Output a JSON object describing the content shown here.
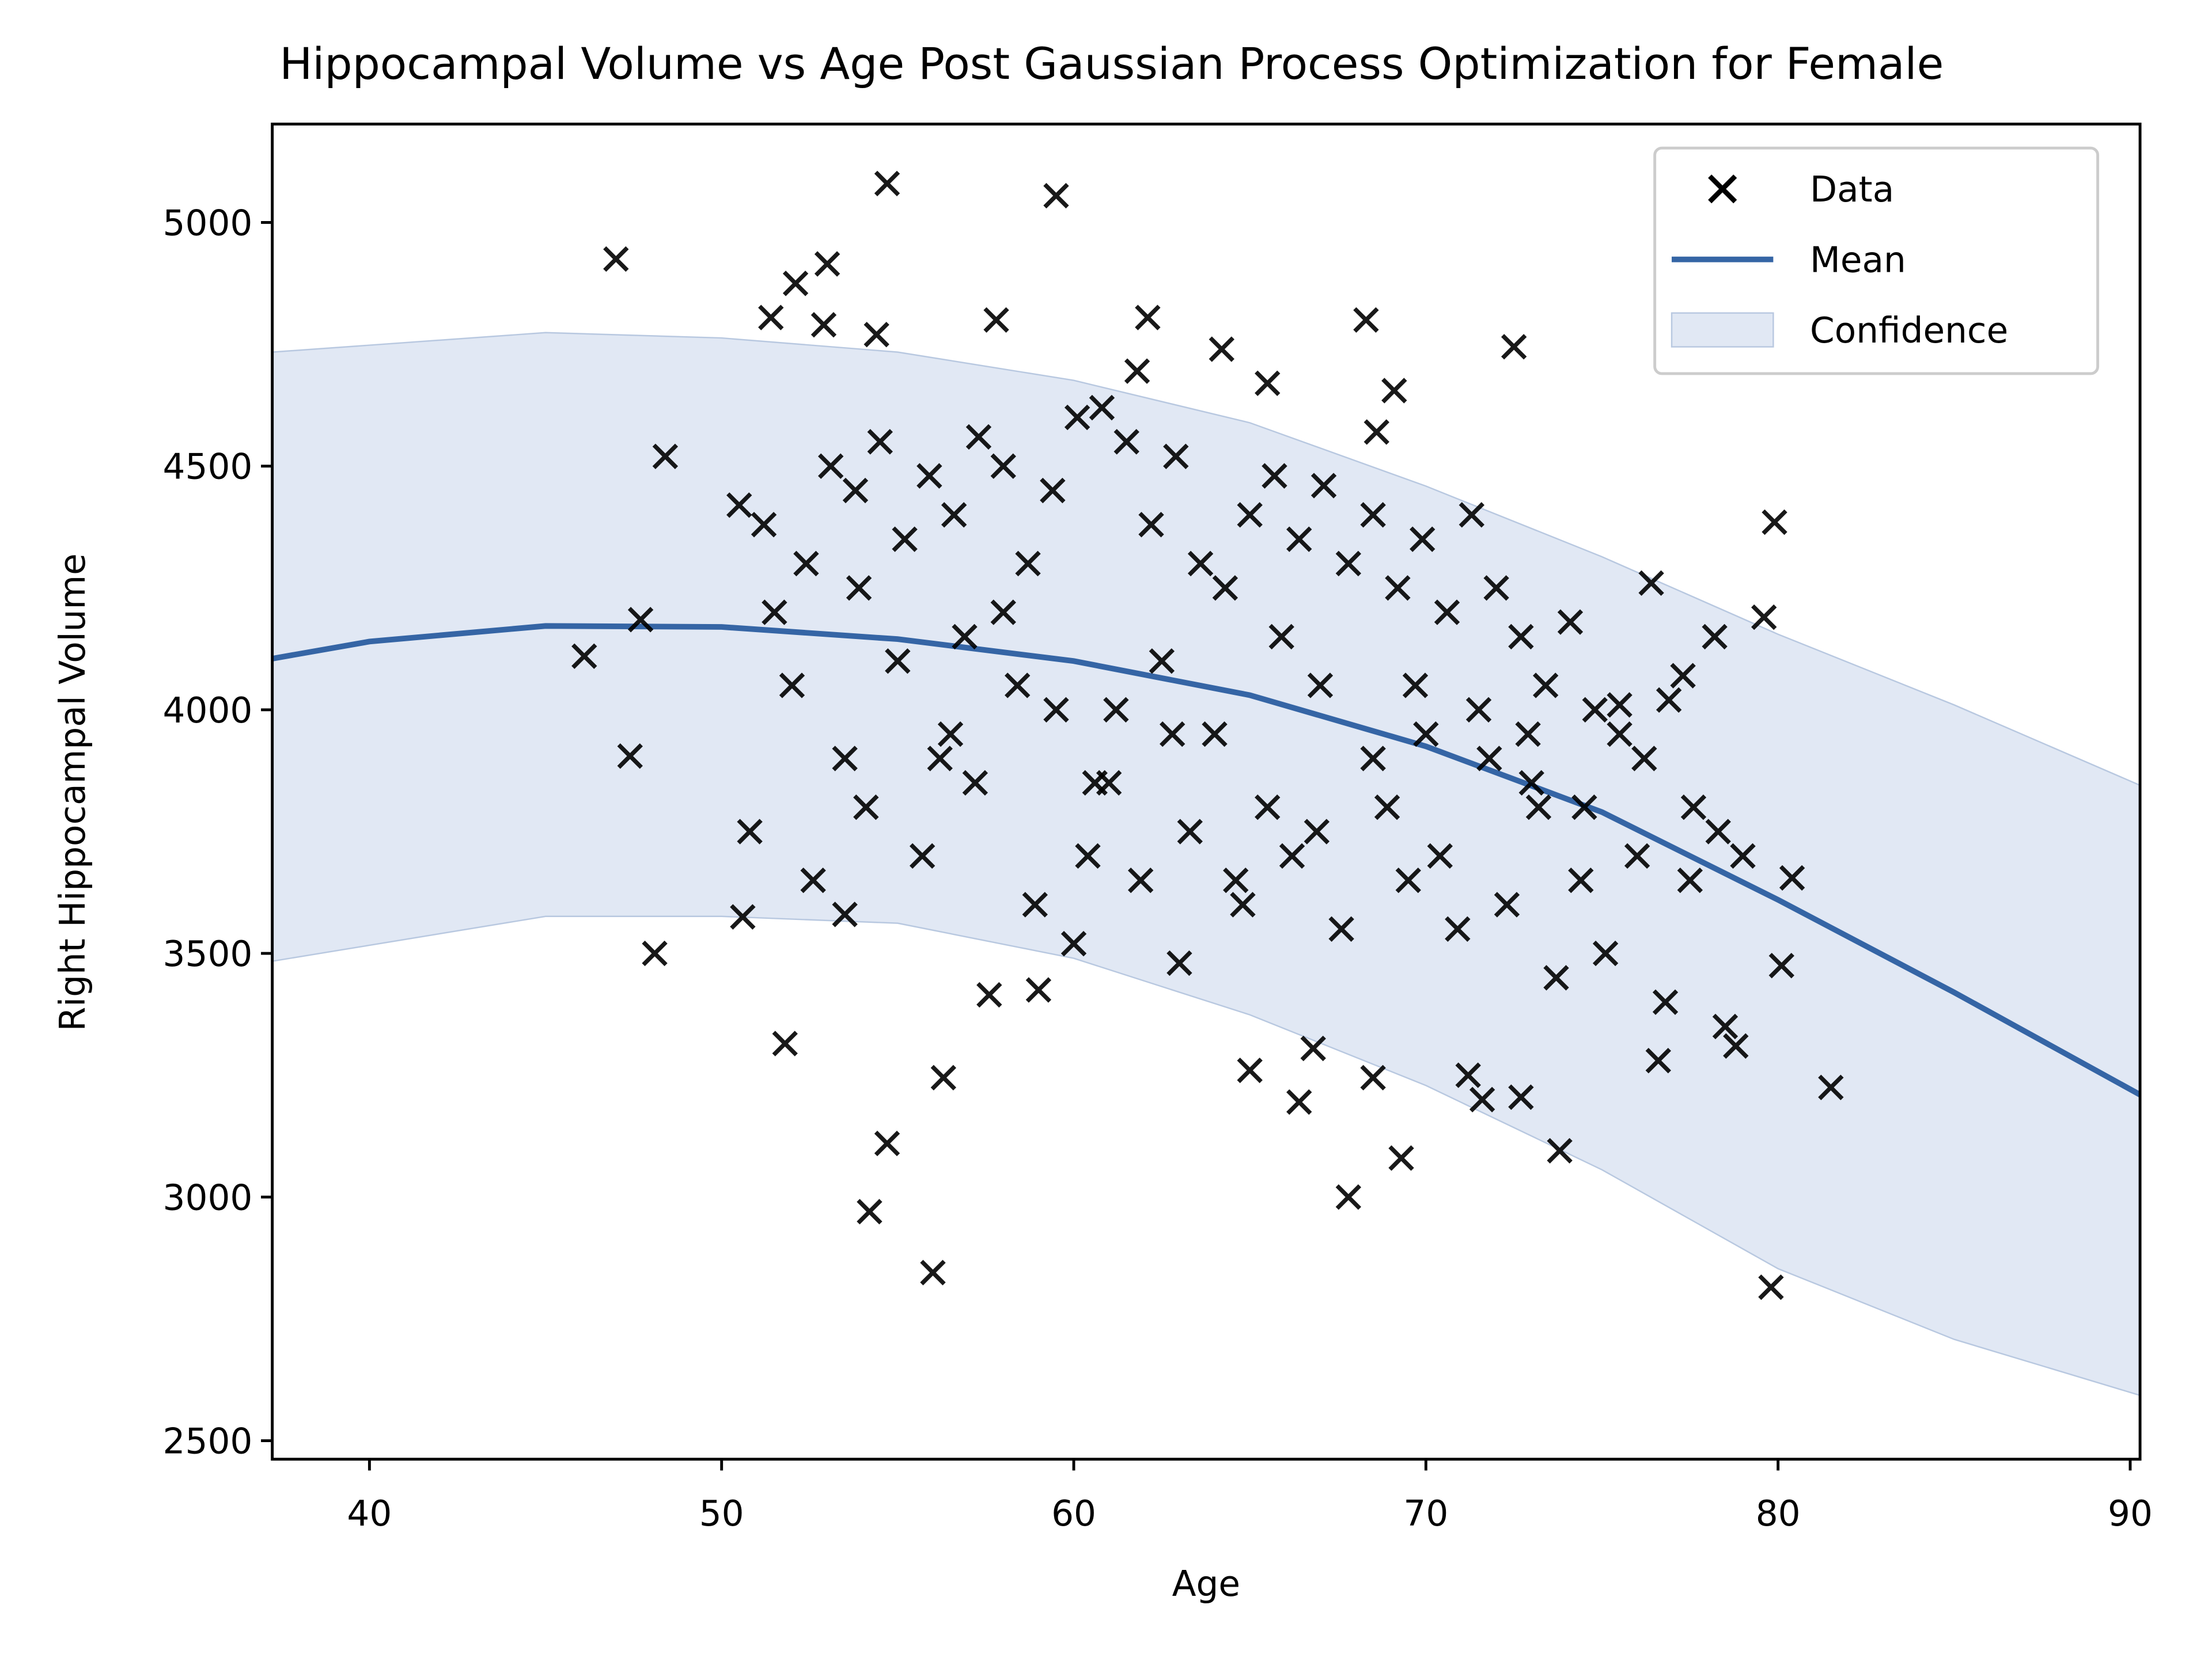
{
  "chart_data": {
    "type": "scatter",
    "title": "Hippocampal Volume vs Age Post Gaussian Process Optimization for Female",
    "x_label": "Age",
    "y_label": "Right Hippocampal Volume",
    "xlim": [
      37.24,
      90.28
    ],
    "ylim": [
      2462,
      5202
    ],
    "xticks": [
      40,
      50,
      60,
      70,
      80,
      90
    ],
    "yticks": [
      2500,
      3000,
      3500,
      4000,
      4500,
      5000
    ],
    "legend": "upper right",
    "series": [
      {
        "name": "Data",
        "kind": "marker",
        "color": "#000000",
        "x": [
          47,
          54.7,
          59.5,
          52.1,
          53,
          51.4,
          52.9,
          54.4,
          57.8,
          62.1,
          68.3,
          72.5,
          64.2,
          65.5,
          61.8,
          69.1,
          48.4,
          68.6,
          79.9,
          76.4,
          79.6,
          46.1,
          47.7,
          47.4,
          48.1,
          51.8,
          54.2,
          54.7,
          56,
          56.3,
          57.6,
          59,
          65,
          66.4,
          67.8,
          68.5,
          69.3,
          71.6,
          72.7,
          73.8,
          79.8,
          81.5,
          80.4,
          80.1,
          78.2,
          75.5,
          77.3,
          50.6,
          53.5,
          60,
          63,
          66.8,
          71.2,
          76.6,
          78.8,
          50.5,
          51.2,
          52.4,
          53.1,
          53.8,
          54.5,
          55.2,
          55.9,
          56.6,
          57.3,
          58,
          58.7,
          59.4,
          60.1,
          60.8,
          61.5,
          62.2,
          62.9,
          63.6,
          64.3,
          65,
          65.7,
          66.4,
          67.1,
          67.8,
          68.5,
          69.2,
          69.9,
          70.6,
          71.3,
          72,
          72.7,
          73.4,
          74.1,
          74.8,
          75.5,
          76.2,
          76.9,
          77.6,
          78.3,
          52,
          53.5,
          55,
          56.5,
          58,
          59.5,
          61,
          62.5,
          64,
          65.5,
          67,
          68.5,
          70,
          71.5,
          73,
          74.5,
          76,
          77.5,
          79,
          50.8,
          52.6,
          54.1,
          55.7,
          57.2,
          58.9,
          60.4,
          61.9,
          63.3,
          64.8,
          66.2,
          67.6,
          69.5,
          70.9,
          72.3,
          73.7,
          75.1,
          76.8,
          78.5,
          51.5,
          53.9,
          56.2,
          58.4,
          60.6,
          62.8,
          64.6,
          66.9,
          68.9,
          70.4,
          71.8,
          73.2,
          74.4,
          56.9,
          61.2,
          65.9,
          69.7,
          72.9
        ],
        "values": [
          4925,
          5080,
          5055,
          4875,
          4915,
          4805,
          4790,
          4770,
          4800,
          4805,
          4800,
          4745,
          4740,
          4670,
          4695,
          4655,
          4520,
          4570,
          4385,
          4260,
          4190,
          4110,
          4185,
          3905,
          3500,
          3315,
          2970,
          3110,
          2845,
          3245,
          3415,
          3425,
          3260,
          3195,
          3000,
          3245,
          3080,
          3200,
          3205,
          3095,
          2815,
          3225,
          3655,
          3475,
          4150,
          4010,
          4070,
          3575,
          3580,
          3520,
          3480,
          3305,
          3250,
          3280,
          3310,
          4420,
          4380,
          4300,
          4500,
          4450,
          4550,
          4350,
          4480,
          4400,
          4560,
          4500,
          4300,
          4450,
          4600,
          4620,
          4550,
          4380,
          4520,
          4300,
          4250,
          4400,
          4480,
          4350,
          4460,
          4300,
          4400,
          4250,
          4350,
          4200,
          4400,
          4250,
          4150,
          4050,
          4180,
          4000,
          3950,
          3900,
          4020,
          3800,
          3750,
          4050,
          3900,
          4100,
          3950,
          4200,
          4000,
          3850,
          4100,
          3950,
          3800,
          4050,
          3900,
          3950,
          4000,
          3850,
          3800,
          3700,
          3650,
          3700,
          3750,
          3650,
          3800,
          3700,
          3850,
          3600,
          3700,
          3650,
          3750,
          3600,
          3700,
          3550,
          3650,
          3550,
          3600,
          3450,
          3500,
          3400,
          3350,
          4200,
          4250,
          3900,
          4050,
          3850,
          3950,
          3650,
          3750,
          3800,
          3700,
          3900,
          3800,
          3650,
          4150,
          4000,
          4150,
          4050,
          3950
        ]
      },
      {
        "name": "Mean",
        "kind": "line",
        "color": "#3565a5",
        "x": [
          37.24,
          40,
          45,
          50,
          55,
          60,
          65,
          70,
          75,
          80,
          85,
          90.28
        ],
        "values": [
          4105,
          4140,
          4172,
          4170,
          4145,
          4100,
          4030,
          3925,
          3790,
          3610,
          3420,
          3210
        ]
      },
      {
        "name": "Confidence",
        "kind": "band",
        "color": "#e1e8f4",
        "x": [
          37.24,
          45,
          50,
          55,
          60,
          65,
          70,
          75,
          80,
          85,
          90.28
        ],
        "upper": [
          4734,
          4774,
          4763,
          4734,
          4676,
          4589,
          4459,
          4314,
          4155,
          4010,
          3845
        ],
        "lower": [
          3484,
          3576,
          3576,
          3562,
          3490,
          3374,
          3229,
          3056,
          2853,
          2708,
          2593
        ]
      }
    ]
  }
}
